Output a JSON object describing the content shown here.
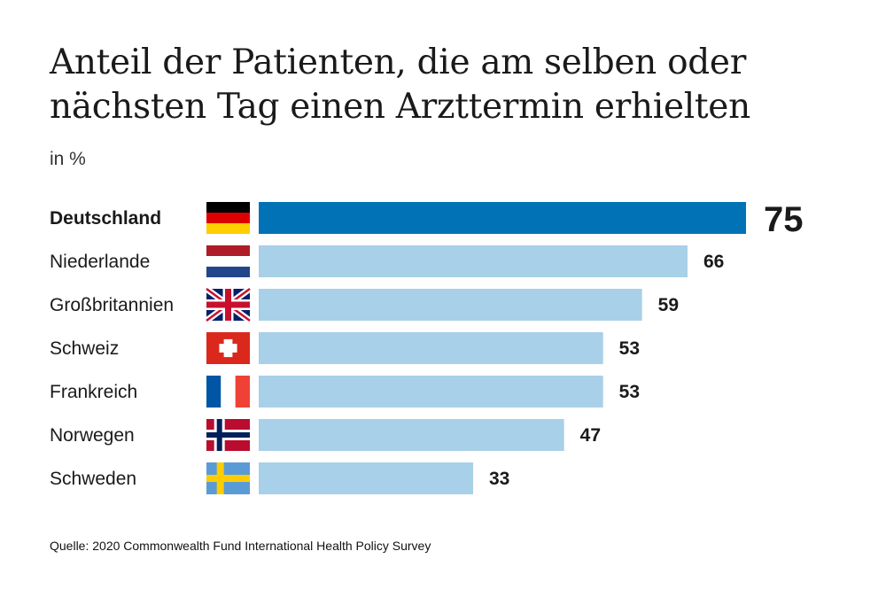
{
  "title_line1": "Anteil der Patienten, die am selben oder",
  "title_line2": "nächsten Tag einen Arzttermin erhielten",
  "subtitle": "in %",
  "source": "Quelle: 2020 Commonwealth Fund International Health Policy Survey",
  "colors": {
    "highlight": "#0072b5",
    "bar": "#a8d0e8",
    "text": "#1a1a1a"
  },
  "chart_data": {
    "type": "bar",
    "orientation": "horizontal",
    "title": "Anteil der Patienten, die am selben oder nächsten Tag einen Arzttermin erhielten",
    "unit": "in %",
    "categories": [
      "Deutschland",
      "Niederlande",
      "Großbritannien",
      "Schweiz",
      "Frankreich",
      "Norwegen",
      "Schweden"
    ],
    "values": [
      75,
      66,
      59,
      53,
      53,
      47,
      33
    ],
    "flags": [
      "germany-flag-icon",
      "netherlands-flag-icon",
      "uk-flag-icon",
      "switzerland-flag-icon",
      "france-flag-icon",
      "norway-flag-icon",
      "sweden-flag-icon"
    ],
    "highlight": "Deutschland",
    "xlim": [
      0,
      75
    ],
    "grid": false,
    "legend": "none"
  }
}
